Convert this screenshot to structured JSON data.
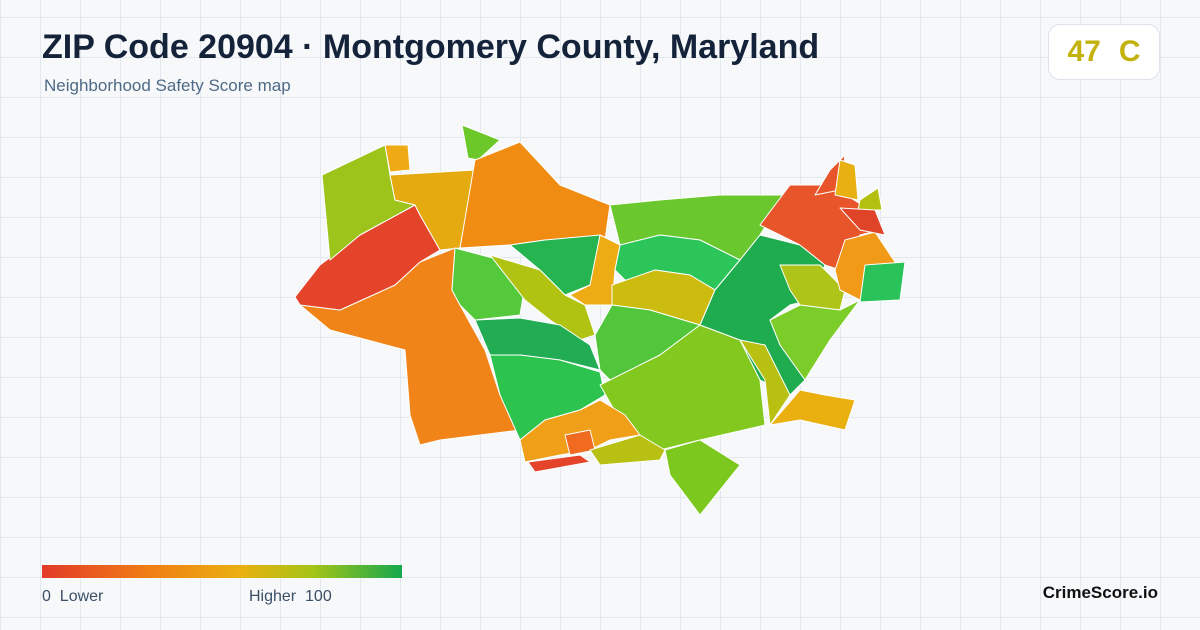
{
  "header": {
    "title": "ZIP Code 20904 · Montgomery County, Maryland",
    "subtitle": "Neighborhood Safety Score map"
  },
  "score": {
    "value": 47,
    "grade": "C"
  },
  "legend": {
    "min": 0,
    "min_label": "Lower",
    "max_label": "Higher",
    "max": 100
  },
  "brand": "CrimeScore.io"
}
